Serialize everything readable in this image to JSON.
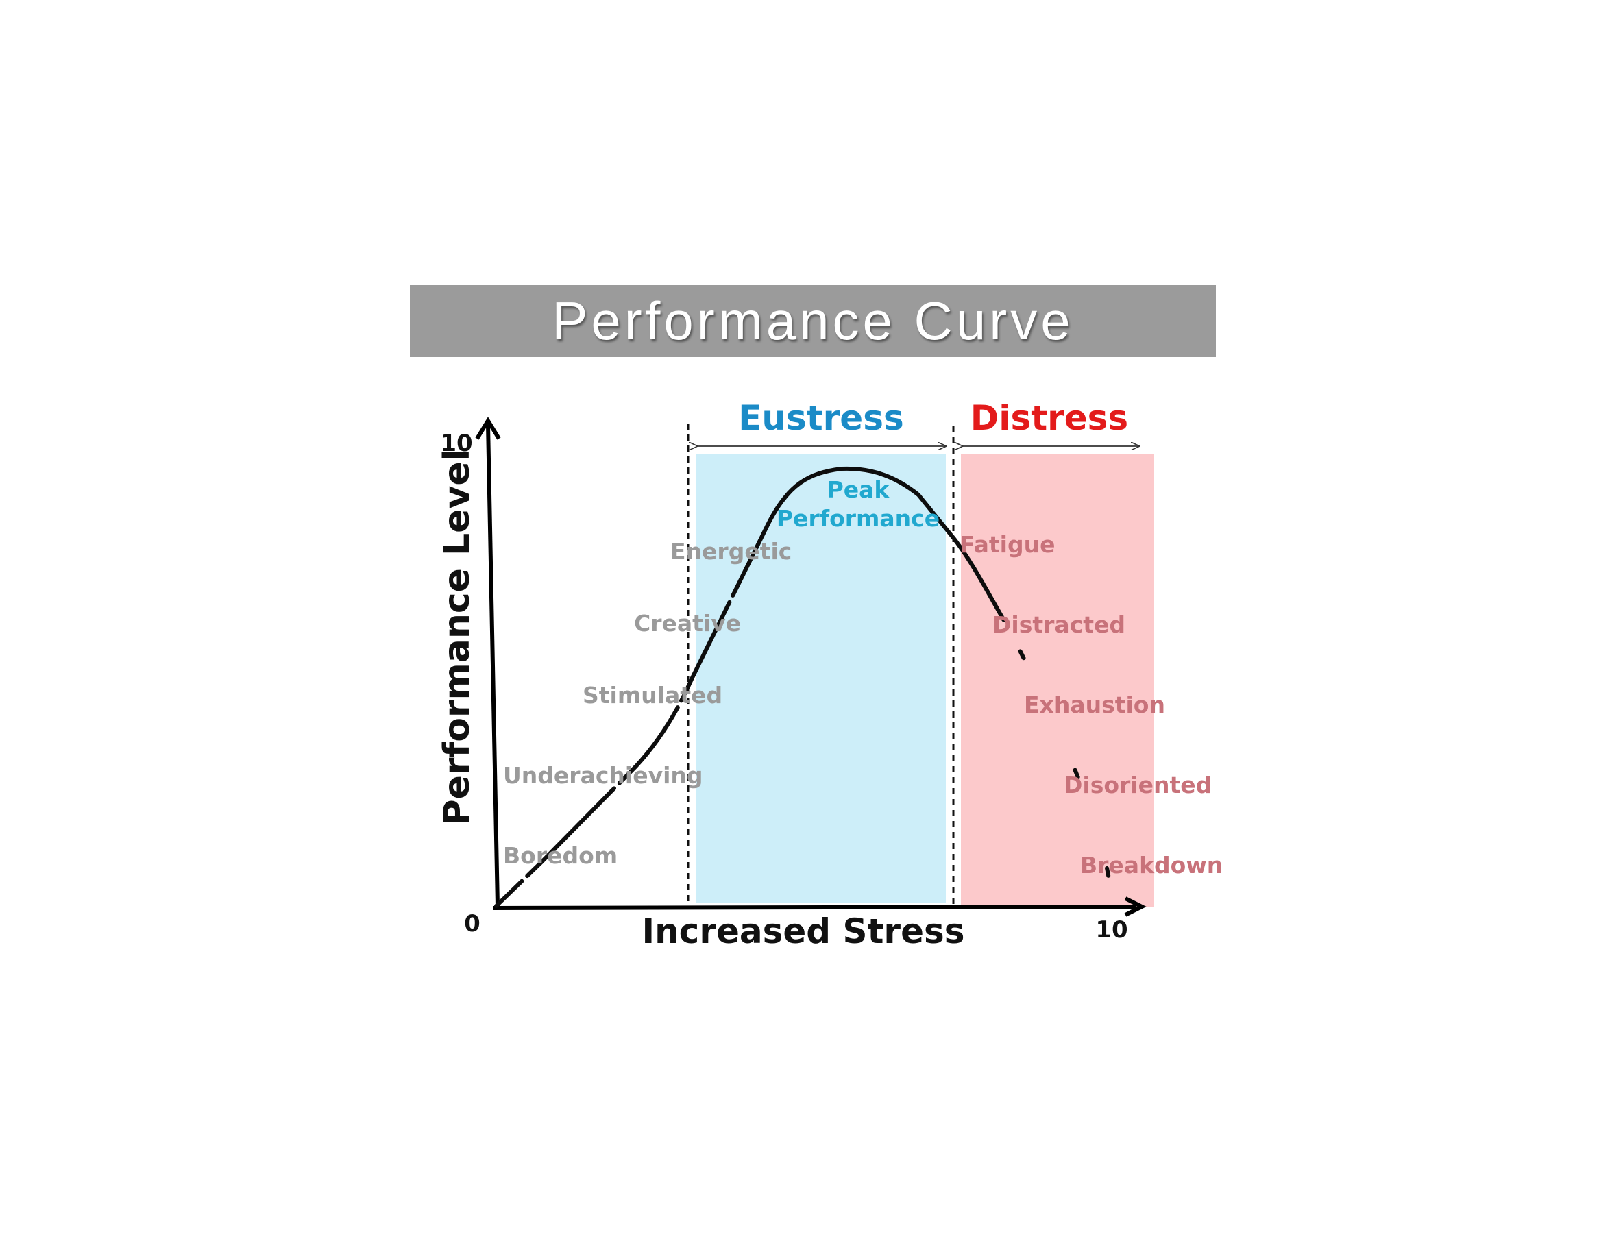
{
  "title": "Performance Curve",
  "zones": {
    "eustress": "Eustress",
    "distress": "Distress"
  },
  "axes": {
    "x_label": "Increased Stress",
    "y_label": "Performance Level",
    "origin": "0",
    "x_max_label": "10",
    "y_max_label": "10"
  },
  "stages": {
    "boredom": "Boredom",
    "underachieving": "Underachieving",
    "stimulated": "Stimulated",
    "creative": "Creative",
    "energetic": "Energetic",
    "peak_line1": "Peak",
    "peak_line2": "Performance",
    "fatigue": "Fatigue",
    "distracted": "Distracted",
    "exhaustion": "Exhaustion",
    "disoriented": "Disoriented",
    "breakdown": "Breakdown"
  },
  "colors": {
    "eustress_title": "#1b8bc7",
    "distress_title": "#e31b1b",
    "eustress_zone": "#cdeef9",
    "distress_zone": "#fcc9cb",
    "peak_label": "#21a8cf",
    "stage_gray": "#9a9a9a",
    "stage_distress": "#c8727a",
    "curve": "#0d0d0d",
    "banner": "#9b9b9b"
  }
}
